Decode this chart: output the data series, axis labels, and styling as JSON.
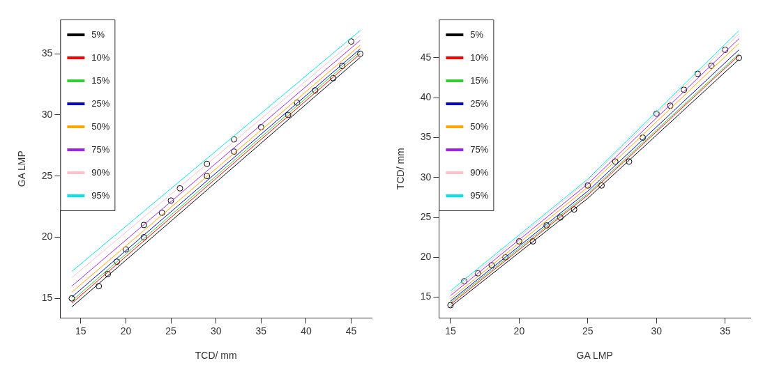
{
  "chart_data": [
    {
      "type": "line",
      "xlabel": "TCD/ mm",
      "ylabel": "GA LMP",
      "xlim": [
        12.72,
        47.28
      ],
      "ylim": [
        13.4,
        37.8
      ],
      "xticks": [
        15,
        20,
        25,
        30,
        35,
        40,
        45
      ],
      "yticks": [
        15,
        20,
        25,
        30,
        35
      ],
      "grid": false,
      "legend": "top left",
      "marker": "none",
      "line_style": "solid",
      "series": [
        {
          "name": "5%",
          "color": "#000000",
          "x": [
            14,
            46
          ],
          "values": [
            14.3,
            34.7
          ]
        },
        {
          "name": "10%",
          "color": "#ff0000",
          "x": [
            14,
            46
          ],
          "values": [
            14.6,
            35.0
          ]
        },
        {
          "name": "15%",
          "color": "#32cd32",
          "x": [
            14,
            46
          ],
          "values": [
            14.8,
            35.2
          ]
        },
        {
          "name": "25%",
          "color": "#0000cd",
          "x": [
            14,
            46
          ],
          "values": [
            15.1,
            35.4
          ]
        },
        {
          "name": "50%",
          "color": "#ffa500",
          "x": [
            14,
            46
          ],
          "values": [
            15.5,
            35.7
          ]
        },
        {
          "name": "75%",
          "color": "#a020f0",
          "x": [
            14,
            46
          ],
          "values": [
            16.0,
            36.1
          ]
        },
        {
          "name": "90%",
          "color": "#ffc0cb",
          "x": [
            14,
            46
          ],
          "values": [
            16.7,
            36.5
          ]
        },
        {
          "name": "95%",
          "color": "#00e5ee",
          "x": [
            14,
            46
          ],
          "values": [
            17.2,
            36.9
          ]
        },
        {
          "type": "scatter",
          "marker": "circle",
          "color": "#000000",
          "x": [
            14,
            17,
            18,
            19,
            20,
            22,
            22,
            24,
            25,
            26,
            29,
            29,
            32,
            32,
            35,
            38,
            39,
            41,
            43,
            44,
            45,
            46
          ],
          "values": [
            15,
            16,
            17,
            18,
            19,
            20,
            21,
            22,
            23,
            24,
            25,
            26,
            27,
            28,
            29,
            30,
            31,
            32,
            33,
            34,
            36,
            35
          ]
        }
      ]
    },
    {
      "type": "line",
      "xlabel": "GA LMP",
      "ylabel": "TCD/ mm",
      "xlim": [
        14.16,
        36.84
      ],
      "ylim": [
        12.4,
        49.8
      ],
      "xticks": [
        15,
        20,
        25,
        30,
        35
      ],
      "yticks": [
        15,
        20,
        25,
        30,
        35,
        40,
        45
      ],
      "grid": false,
      "legend": "top left",
      "marker": "none",
      "line_style": "solid",
      "series": [
        {
          "name": "5%",
          "color": "#000000",
          "x": [
            15,
            25,
            36
          ],
          "values": [
            13.8,
            27.4,
            44.8
          ]
        },
        {
          "name": "10%",
          "color": "#ff0000",
          "x": [
            15,
            25,
            36
          ],
          "values": [
            14.1,
            27.8,
            45.3
          ]
        },
        {
          "name": "15%",
          "color": "#32cd32",
          "x": [
            15,
            25,
            36
          ],
          "values": [
            14.3,
            28.0,
            45.5
          ]
        },
        {
          "name": "25%",
          "color": "#0000cd",
          "x": [
            15,
            25,
            36
          ],
          "values": [
            14.5,
            28.3,
            46.0
          ]
        },
        {
          "name": "50%",
          "color": "#ffa500",
          "x": [
            15,
            25,
            36
          ],
          "values": [
            14.8,
            28.8,
            46.8
          ]
        },
        {
          "name": "75%",
          "color": "#a020f0",
          "x": [
            15,
            25,
            36
          ],
          "values": [
            15.2,
            29.2,
            47.4
          ]
        },
        {
          "name": "90%",
          "color": "#ffc0cb",
          "x": [
            15,
            25,
            36
          ],
          "values": [
            15.5,
            29.6,
            48.0
          ]
        },
        {
          "name": "95%",
          "color": "#00e5ee",
          "x": [
            15,
            25,
            36
          ],
          "values": [
            15.8,
            29.8,
            48.4
          ]
        },
        {
          "type": "scatter",
          "marker": "circle",
          "color": "#000000",
          "x": [
            15,
            16,
            17,
            18,
            19,
            20,
            21,
            22,
            23,
            24,
            25,
            26,
            27,
            28,
            29,
            30,
            31,
            32,
            33,
            34,
            35,
            36
          ],
          "values": [
            14,
            17,
            18,
            19,
            20,
            22,
            22,
            24,
            25,
            26,
            29,
            29,
            32,
            32,
            35,
            38,
            39,
            41,
            43,
            44,
            46,
            45
          ]
        }
      ]
    }
  ]
}
